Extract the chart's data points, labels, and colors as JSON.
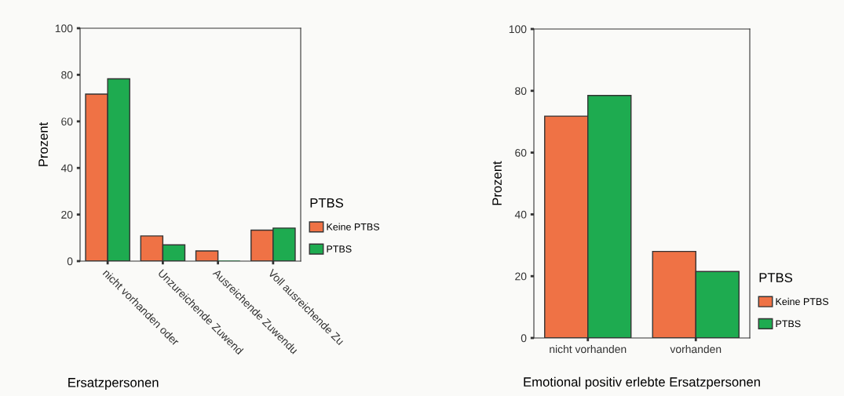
{
  "chart_data": [
    {
      "type": "bar",
      "xlabel": "Ersatzpersonen",
      "ylabel": "Prozent",
      "legend_title": "PTBS",
      "categories": [
        "nicht vorhanden oder",
        "Unzureichende Zuwend",
        "Ausreichende Zuwendu",
        "Voll ausreichende Zu"
      ],
      "series": [
        {
          "name": "Keine PTBS",
          "color": "#ef7245",
          "values": [
            71.7,
            10.8,
            4.4,
            13.3
          ]
        },
        {
          "name": "PTBS",
          "color": "#1eab50",
          "values": [
            78.3,
            7.0,
            0,
            14.2
          ]
        }
      ],
      "ylim": [
        0,
        100
      ],
      "yticks": [
        0,
        20,
        40,
        60,
        80,
        100
      ],
      "grid": false,
      "legend": "right"
    },
    {
      "type": "bar",
      "xlabel": "Emotional positiv erlebte Ersatzpersonen",
      "ylabel": "Prozent",
      "legend_title": "PTBS",
      "categories": [
        "nicht vorhanden",
        "vorhanden"
      ],
      "series": [
        {
          "name": "Keine PTBS",
          "color": "#ef7245",
          "values": [
            71.8,
            28.0
          ]
        },
        {
          "name": "PTBS",
          "color": "#1eab50",
          "values": [
            78.5,
            21.5
          ]
        }
      ],
      "ylim": [
        0,
        100
      ],
      "yticks": [
        0,
        20,
        40,
        60,
        80,
        100
      ],
      "grid": false,
      "legend": "right"
    }
  ]
}
